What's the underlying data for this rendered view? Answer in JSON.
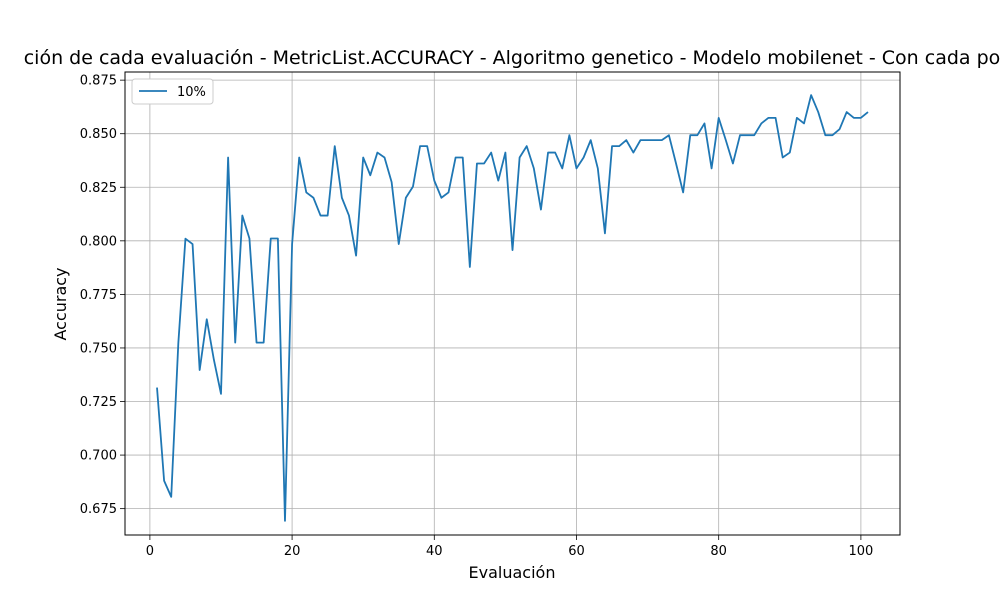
{
  "chart_data": {
    "type": "line",
    "title": "ción de cada evaluación - MetricList.ACCURACY - Algoritmo genetico - Modelo mobilenet - Con cada po",
    "xlabel": "Evaluación",
    "ylabel": "Accuracy",
    "xlim": [
      -3.5,
      105.5
    ],
    "ylim": [
      0.6627,
      0.8788
    ],
    "xticks": [
      0,
      20,
      40,
      60,
      80,
      100
    ],
    "yticks": [
      0.675,
      0.7,
      0.725,
      0.75,
      0.775,
      0.8,
      0.825,
      0.85,
      0.875
    ],
    "ytick_labels": [
      "0.675",
      "0.700",
      "0.725",
      "0.750",
      "0.775",
      "0.800",
      "0.825",
      "0.850",
      "0.875"
    ],
    "grid": true,
    "legend_position": "upper left",
    "series": [
      {
        "name": "10%",
        "color": "#1f77b4",
        "x": [
          1,
          2,
          3,
          4,
          5,
          6,
          7,
          8,
          9,
          10,
          11,
          12,
          13,
          14,
          15,
          16,
          17,
          18,
          19,
          20,
          21,
          22,
          23,
          24,
          25,
          26,
          27,
          28,
          29,
          30,
          31,
          32,
          33,
          34,
          35,
          36,
          37,
          38,
          39,
          40,
          41,
          42,
          43,
          44,
          45,
          46,
          47,
          48,
          49,
          50,
          51,
          52,
          53,
          54,
          55,
          56,
          57,
          58,
          59,
          60,
          61,
          62,
          63,
          64,
          65,
          66,
          67,
          68,
          69,
          70,
          71,
          72,
          73,
          74,
          75,
          76,
          77,
          78,
          79,
          80,
          81,
          82,
          83,
          84,
          85,
          86,
          87,
          88,
          89,
          90,
          91,
          92,
          93,
          94,
          95,
          96,
          97,
          98,
          99,
          100,
          101
        ],
        "values": [
          0.7315,
          0.688,
          0.6805,
          0.7523,
          0.801,
          0.7985,
          0.7397,
          0.7634,
          0.7445,
          0.7286,
          0.8389,
          0.7525,
          0.8118,
          0.8011,
          0.7525,
          0.7525,
          0.8011,
          0.8011,
          0.6693,
          0.7985,
          0.8389,
          0.8226,
          0.8201,
          0.8118,
          0.8118,
          0.8442,
          0.8201,
          0.8118,
          0.7931,
          0.8389,
          0.8306,
          0.8412,
          0.8389,
          0.8274,
          0.7985,
          0.8201,
          0.8253,
          0.8442,
          0.8442,
          0.8281,
          0.8201,
          0.8226,
          0.8389,
          0.8389,
          0.7878,
          0.8361,
          0.8361,
          0.8412,
          0.8281,
          0.8412,
          0.7957,
          0.8389,
          0.8442,
          0.8338,
          0.8146,
          0.8412,
          0.8412,
          0.8338,
          0.8493,
          0.8338,
          0.8389,
          0.847,
          0.8338,
          0.8035,
          0.8442,
          0.8442,
          0.847,
          0.8412,
          0.847,
          0.847,
          0.847,
          0.847,
          0.8493,
          0.8361,
          0.8226,
          0.8493,
          0.8493,
          0.8548,
          0.8338,
          0.8574,
          0.847,
          0.8361,
          0.8493,
          0.8493,
          0.8493,
          0.8548,
          0.8574,
          0.8574,
          0.8389,
          0.8412,
          0.8574,
          0.8548,
          0.868,
          0.8601,
          0.8493,
          0.8493,
          0.8521,
          0.8601,
          0.8574,
          0.8574,
          0.8601
        ]
      }
    ]
  }
}
